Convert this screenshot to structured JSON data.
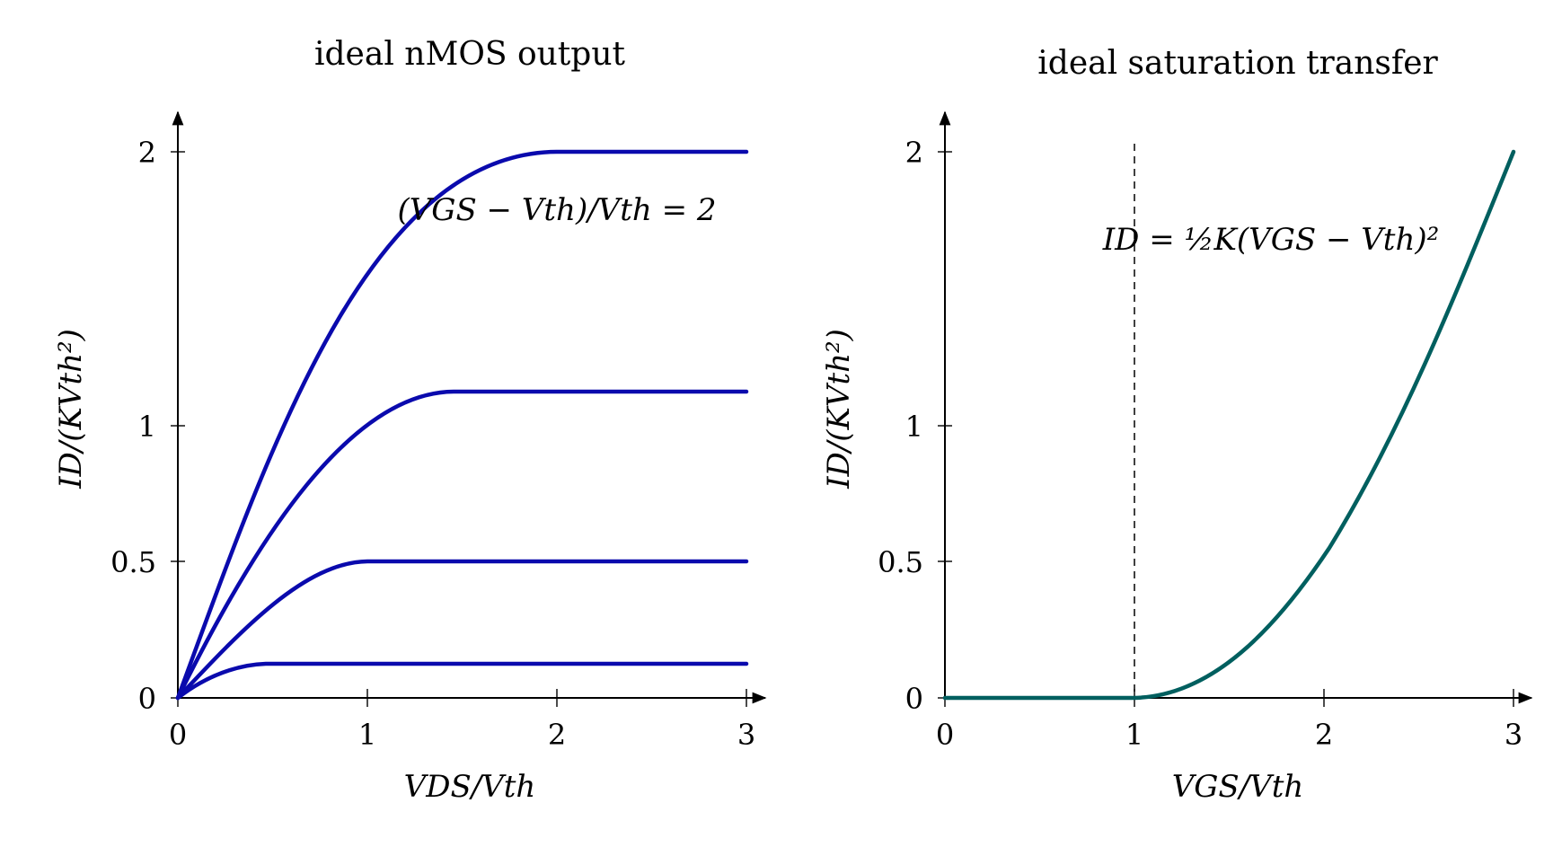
{
  "chart_data": [
    {
      "type": "line",
      "title": "ideal nMOS output",
      "xlabel": "VDS/Vth",
      "ylabel": "ID/(KVth²)",
      "xlim": [
        0,
        3
      ],
      "ylim": [
        0,
        2.15
      ],
      "y_scale": "nonlinear (ticks 0, 0.5, 1, 2 at unequal spacing)",
      "x_ticks": [
        "0",
        "1",
        "2",
        "3"
      ],
      "y_ticks": [
        {
          "value": 0,
          "label": "0"
        },
        {
          "value": 0.5,
          "label": "0.5"
        },
        {
          "value": 1,
          "label": "1"
        },
        {
          "value": 2,
          "label": "2"
        }
      ],
      "color": "#0a0aad",
      "series": [
        {
          "vov": 0.5,
          "sat_current": 0.125,
          "points_x": [
            0,
            0.125,
            0.25,
            0.375,
            0.5,
            3
          ],
          "points_y": [
            0,
            0.055,
            0.094,
            0.117,
            0.125,
            0.125
          ]
        },
        {
          "vov": 1.0,
          "sat_current": 0.5,
          "points_x": [
            0,
            0.25,
            0.5,
            0.75,
            1.0,
            3
          ],
          "points_y": [
            0,
            0.219,
            0.375,
            0.469,
            0.5,
            0.5
          ]
        },
        {
          "vov": 1.5,
          "sat_current": 1.125,
          "points_x": [
            0,
            0.375,
            0.75,
            1.125,
            1.5,
            3
          ],
          "points_y": [
            0,
            0.492,
            0.844,
            1.055,
            1.125,
            1.125
          ]
        },
        {
          "vov": 2.0,
          "sat_current": 2.0,
          "points_x": [
            0,
            0.5,
            1.0,
            1.5,
            2.0,
            3
          ],
          "points_y": [
            0,
            0.875,
            1.5,
            1.875,
            2.0,
            2.0
          ]
        }
      ],
      "annotation": "(VGS − Vth)/Vth = 2"
    },
    {
      "type": "line",
      "title": "ideal saturation transfer",
      "xlabel": "VGS/Vth",
      "ylabel": "ID/(KVth²)",
      "xlim": [
        0,
        3
      ],
      "ylim": [
        0,
        2.15
      ],
      "x_ticks": [
        "0",
        "1",
        "2",
        "3"
      ],
      "y_ticks": [
        {
          "value": 0,
          "label": "0"
        },
        {
          "value": 0.5,
          "label": "0.5"
        },
        {
          "value": 1,
          "label": "1"
        },
        {
          "value": 2,
          "label": "2"
        }
      ],
      "color": "#005f5f",
      "series": [
        {
          "points_x": [
            0,
            1.0,
            1.25,
            1.5,
            1.75,
            2.0,
            2.25,
            2.5,
            2.75,
            3.0
          ],
          "points_y": [
            0,
            0,
            0.031,
            0.125,
            0.281,
            0.5,
            0.781,
            1.125,
            1.531,
            2.0
          ]
        }
      ],
      "threshold_line": 1,
      "annotation": "ID = ½K(VGS − Vth)²"
    }
  ]
}
